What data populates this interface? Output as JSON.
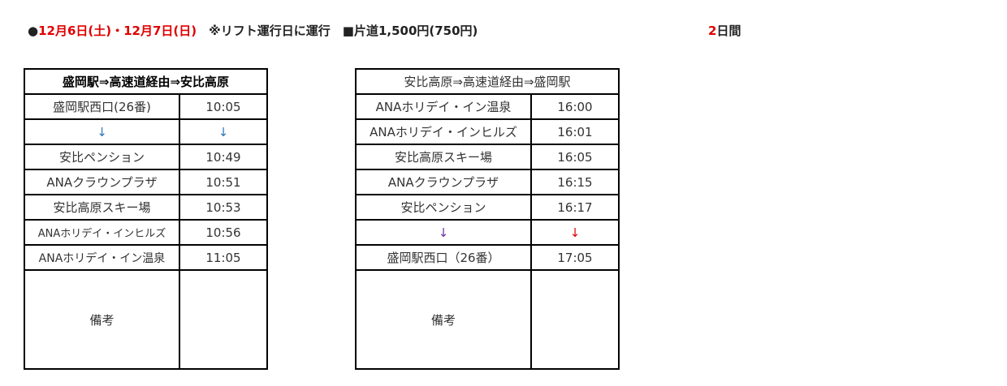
{
  "header": {
    "bullet": "●",
    "dates": "12月6日(土)・12月7日(日)",
    "note": "※リフト運行日に運行",
    "fare": "■片道1,500円(750円)",
    "days_num": "2",
    "days_unit": "日間"
  },
  "outbound": {
    "title": "盛岡駅⇒高速道経由⇒安比高原",
    "rows": [
      {
        "stop": "盛岡駅西口(26番)",
        "time": "10:05"
      },
      {
        "stop": "↓",
        "time": "↓"
      },
      {
        "stop": "安比ペンション",
        "time": "10:49"
      },
      {
        "stop": "ANAクラウンプラザ",
        "time": "10:51"
      },
      {
        "stop": "安比高原スキー場",
        "time": "10:53"
      },
      {
        "stop": "ANAホリデイ・インヒルズ",
        "time": "10:56"
      },
      {
        "stop": "ANAホリデイ・イン温泉",
        "time": "11:05"
      }
    ],
    "remarks_label": "備考"
  },
  "inbound": {
    "title": "安比高原⇒高速道経由⇒盛岡駅",
    "rows": [
      {
        "stop": "ANAホリデイ・イン温泉",
        "time": "16:00"
      },
      {
        "stop": "ANAホリデイ・インヒルズ",
        "time": "16:01"
      },
      {
        "stop": "安比高原スキー場",
        "time": "16:05"
      },
      {
        "stop": "ANAクラウンプラザ",
        "time": "16:15"
      },
      {
        "stop": "安比ペンション",
        "time": "16:17"
      },
      {
        "stop": "↓",
        "time": "↓"
      },
      {
        "stop": "盛岡駅西口（26番）",
        "time": "17:05"
      }
    ],
    "remarks_label": "備考"
  }
}
